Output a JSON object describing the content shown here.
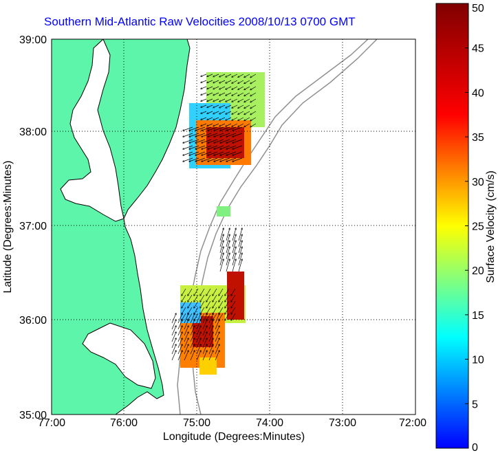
{
  "title": "Southern Mid-Atlantic Raw Velocities 2008/10/13 0700 GMT",
  "chart_data": {
    "type": "heatmap",
    "title": "Southern Mid-Atlantic Raw Velocities 2008/10/13 0700 GMT",
    "xlabel": "Longitude (Degrees:Minutes)",
    "ylabel": "Latitude (Degrees:Minutes)",
    "xlim": [
      -77,
      -72
    ],
    "ylim": [
      35,
      39
    ],
    "x_ticks": [
      "77:00",
      "76:00",
      "75:00",
      "74:00",
      "73:00",
      "72:00"
    ],
    "y_ticks": [
      "35:00",
      "36:00",
      "37:00",
      "38:00",
      "39:00"
    ],
    "grid": true,
    "colorbar": {
      "label": "Surface Velocity (cm/s)",
      "min": 0,
      "max": 50,
      "ticks": [
        "0",
        "5",
        "10",
        "15",
        "20",
        "25",
        "30",
        "35",
        "40",
        "45",
        "50"
      ]
    },
    "colors": {
      "land": "#5cf5a9",
      "frame": "#000000",
      "grid": "#000000",
      "bathymetry": "#909090"
    }
  }
}
